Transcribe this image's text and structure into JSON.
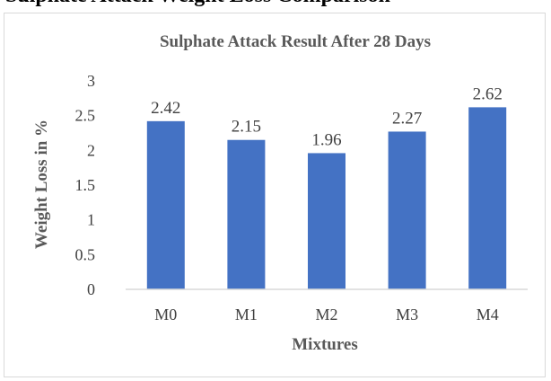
{
  "page": {
    "top_heading": "Sulphate Attack Weight Loss Comparison"
  },
  "chart_data": {
    "type": "bar",
    "title": "Sulphate Attack Result After 28 Days",
    "xlabel": "Mixtures",
    "ylabel": "Weight Loss in %",
    "categories": [
      "M0",
      "M1",
      "M2",
      "M3",
      "M4"
    ],
    "values": [
      2.42,
      2.15,
      1.96,
      2.27,
      2.62
    ],
    "value_labels": [
      "2.42",
      "2.15",
      "1.96",
      "2.27",
      "2.62"
    ],
    "ylim": [
      0,
      3
    ],
    "yticks": [
      0,
      0.5,
      1,
      1.5,
      2,
      2.5,
      3
    ],
    "ytick_labels": [
      "0",
      "0.5",
      "1",
      "1.5",
      "2",
      "2.5",
      "3"
    ],
    "grid": false,
    "legend": "none",
    "colors": {
      "bar": "#4472c4",
      "axis": "#d9d9d9",
      "text": "#404040",
      "title": "#595959"
    }
  }
}
